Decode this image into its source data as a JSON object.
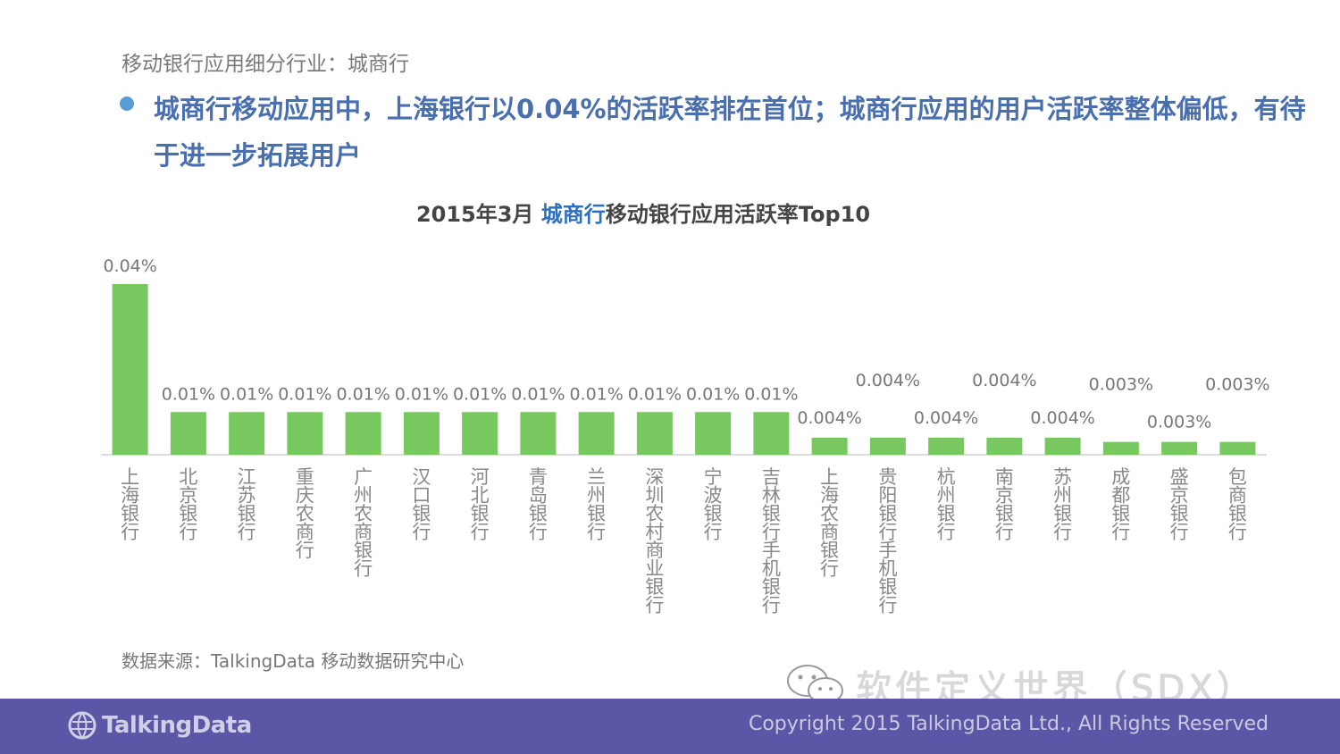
{
  "header": {
    "subtitle": "移动银行应用细分行业：城商行",
    "headline": "城商行移动应用中，上海银行以0.04%的活跃率排在首位；城商行应用的用户活跃率整体偏低，有待于进一步拓展用户"
  },
  "chart_title": {
    "prefix": "2015年3月 ",
    "highlight": "城商行",
    "suffix": "移动银行应用活跃率Top10"
  },
  "chart_data": {
    "type": "bar",
    "title": "2015年3月 城商行移动银行应用活跃率Top10",
    "categories": [
      "上海银行",
      "北京银行",
      "江苏银行",
      "重庆农商行",
      "广州农商银行",
      "汉口银行",
      "河北银行",
      "青岛银行",
      "兰州银行",
      "深圳农村商业银行",
      "宁波银行",
      "吉林银行手机银行",
      "上海农商银行",
      "贵阳银行手机银行",
      "杭州银行",
      "南京银行",
      "苏州银行",
      "成都银行",
      "盛京银行",
      "包商银行"
    ],
    "values": [
      0.04,
      0.01,
      0.01,
      0.01,
      0.01,
      0.01,
      0.01,
      0.01,
      0.01,
      0.01,
      0.01,
      0.01,
      0.004,
      0.004,
      0.004,
      0.004,
      0.004,
      0.003,
      0.003,
      0.003
    ],
    "labels": [
      "0.04%",
      "0.01%",
      "0.01%",
      "0.01%",
      "0.01%",
      "0.01%",
      "0.01%",
      "0.01%",
      "0.01%",
      "0.01%",
      "0.01%",
      "0.01%",
      "0.004%",
      "0.004%",
      "0.004%",
      "0.004%",
      "0.004%",
      "0.003%",
      "0.003%",
      "0.003%"
    ],
    "unit": "%",
    "bar_color": "#77c95f"
  },
  "source": "数据来源：TalkingData 移动数据研究中心",
  "watermark": "软件定义世界（SDX）",
  "footer": {
    "logo_text": "TalkingData",
    "copyright": "Copyright 2015 TalkingData Ltd., All Rights Reserved"
  },
  "colors": {
    "footer_bg": "#5b56a6",
    "headline": "#4a6fae",
    "bullet": "#5b9bd5"
  }
}
